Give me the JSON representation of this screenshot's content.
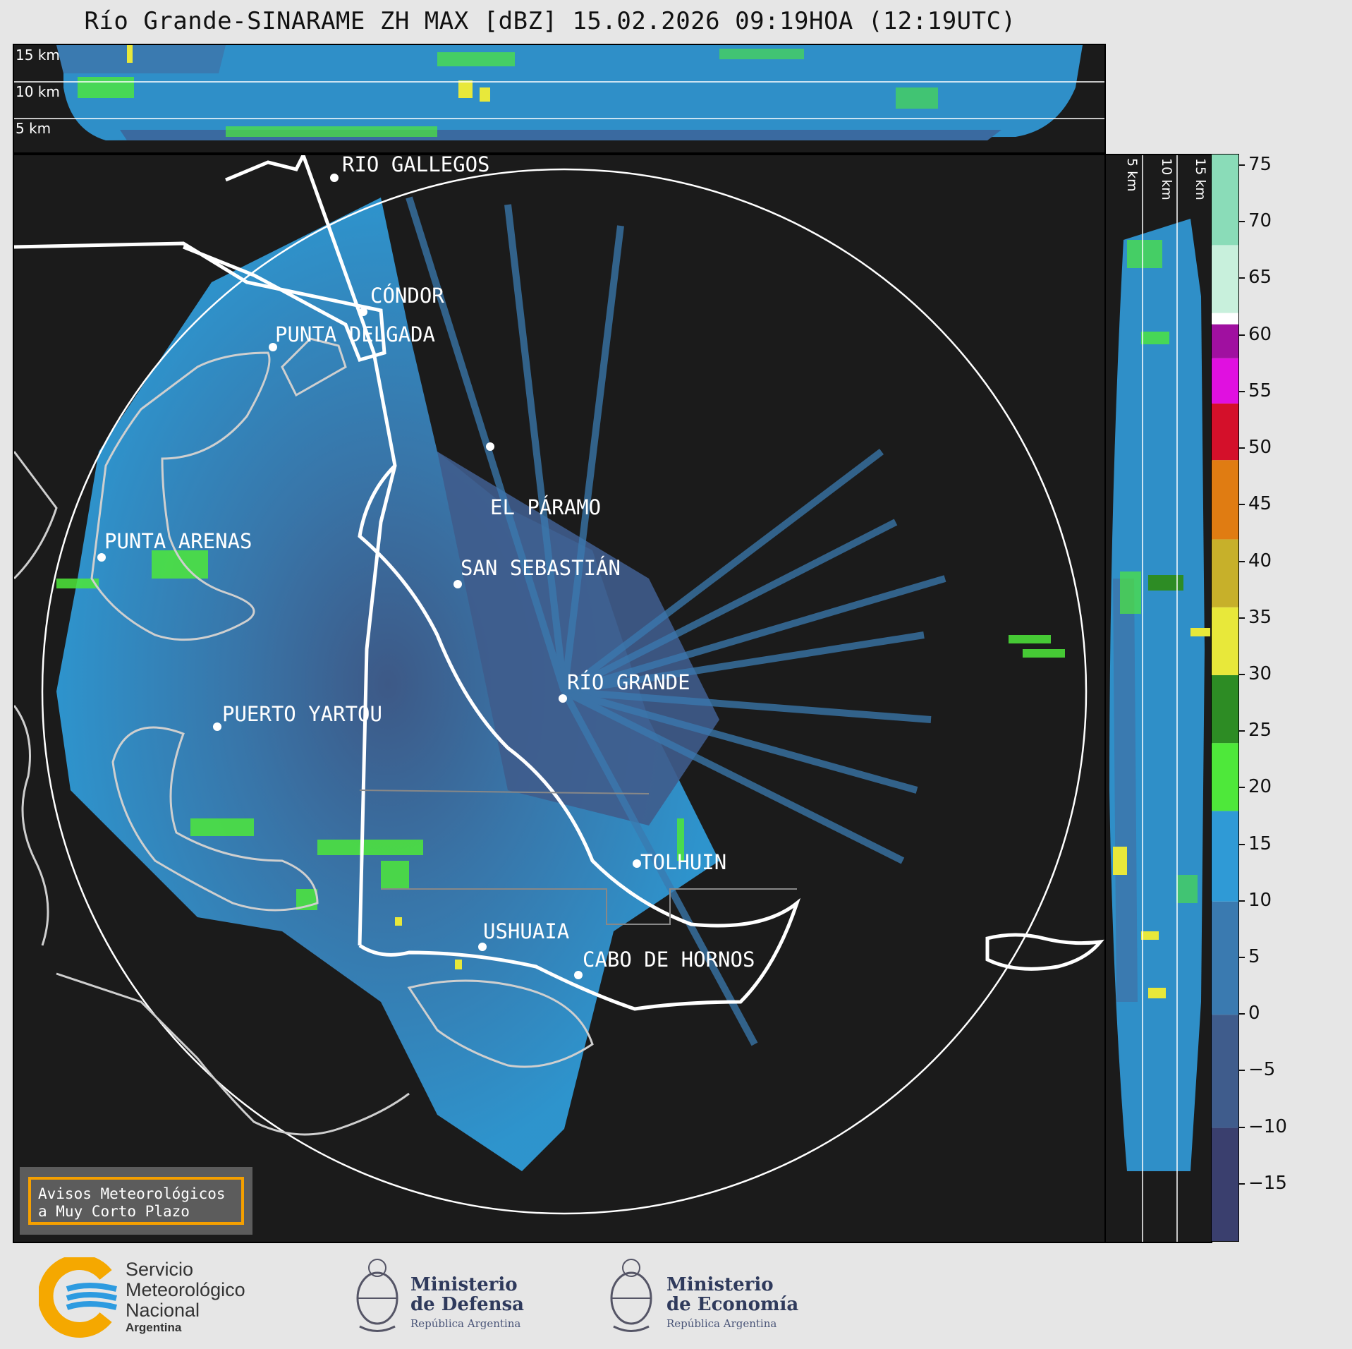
{
  "title": "Río Grande-SINARAME ZH MAX [dBZ] 15.02.2026 09:19HOA (12:19UTC)",
  "height_labels": [
    "15 km",
    "10 km",
    "5 km"
  ],
  "cities": [
    {
      "name": "RÍO GALLEGOS"
    },
    {
      "name": "CÓNDOR"
    },
    {
      "name": "PUNTA DELGADA"
    },
    {
      "name": "EL PÁRAMO"
    },
    {
      "name": "PUNTA ARENAS"
    },
    {
      "name": "SAN SEBASTIÁN"
    },
    {
      "name": "RÍO GRANDE"
    },
    {
      "name": "PUERTO YARTOU"
    },
    {
      "name": "TOLHUIN"
    },
    {
      "name": "USHUAIA"
    },
    {
      "name": "CABO DE HORNOS"
    }
  ],
  "warning_box": {
    "line1": "Avisos Meteorológicos",
    "line2": "a Muy Corto Plazo"
  },
  "colorbar": {
    "unit": "dBZ",
    "min": -20,
    "max": 76,
    "ticks": [
      "75",
      "70",
      "65",
      "60",
      "55",
      "50",
      "45",
      "40",
      "35",
      "30",
      "25",
      "20",
      "15",
      "10",
      "5",
      "0",
      "−5",
      "−10",
      "−15"
    ],
    "tick_values": [
      75,
      70,
      65,
      60,
      55,
      50,
      45,
      40,
      35,
      30,
      25,
      20,
      15,
      10,
      5,
      0,
      -5,
      -10,
      -15
    ],
    "bands": [
      {
        "from": -20,
        "to": -10,
        "color": "#3a3f6e"
      },
      {
        "from": -10,
        "to": 0,
        "color": "#3f5c8c"
      },
      {
        "from": 0,
        "to": 10,
        "color": "#3a7ab0"
      },
      {
        "from": 10,
        "to": 18,
        "color": "#2f9ad6"
      },
      {
        "from": 18,
        "to": 24,
        "color": "#4ee83a"
      },
      {
        "from": 24,
        "to": 30,
        "color": "#2d8c24"
      },
      {
        "from": 30,
        "to": 36,
        "color": "#e8e83a"
      },
      {
        "from": 36,
        "to": 42,
        "color": "#c7b02a"
      },
      {
        "from": 42,
        "to": 49,
        "color": "#e07c12"
      },
      {
        "from": 49,
        "to": 54,
        "color": "#d4102a"
      },
      {
        "from": 54,
        "to": 58,
        "color": "#e010e0"
      },
      {
        "from": 58,
        "to": 61,
        "color": "#a010a0"
      },
      {
        "from": 61,
        "to": 62,
        "color": "#ffffff"
      },
      {
        "from": 62,
        "to": 68,
        "color": "#c8f0dc"
      },
      {
        "from": 68,
        "to": 76,
        "color": "#8adcb8"
      }
    ]
  },
  "logos": {
    "smn": {
      "line1": "Servicio",
      "line2": "Meteorológico",
      "line3": "Nacional",
      "line4": "Argentina"
    },
    "defensa": {
      "line1": "Ministerio",
      "line2": "de Defensa",
      "line3": "República Argentina"
    },
    "economia": {
      "line1": "Ministerio",
      "line2": "de Economía",
      "line3": "República Argentina"
    }
  },
  "colors": {
    "background": "#1b1b1b",
    "echo_base": "#3a7ab0",
    "echo_light": "#2f9ad6",
    "echo_green": "#4ee83a",
    "coast": "#cfcfcf",
    "border": "#ffffff"
  }
}
